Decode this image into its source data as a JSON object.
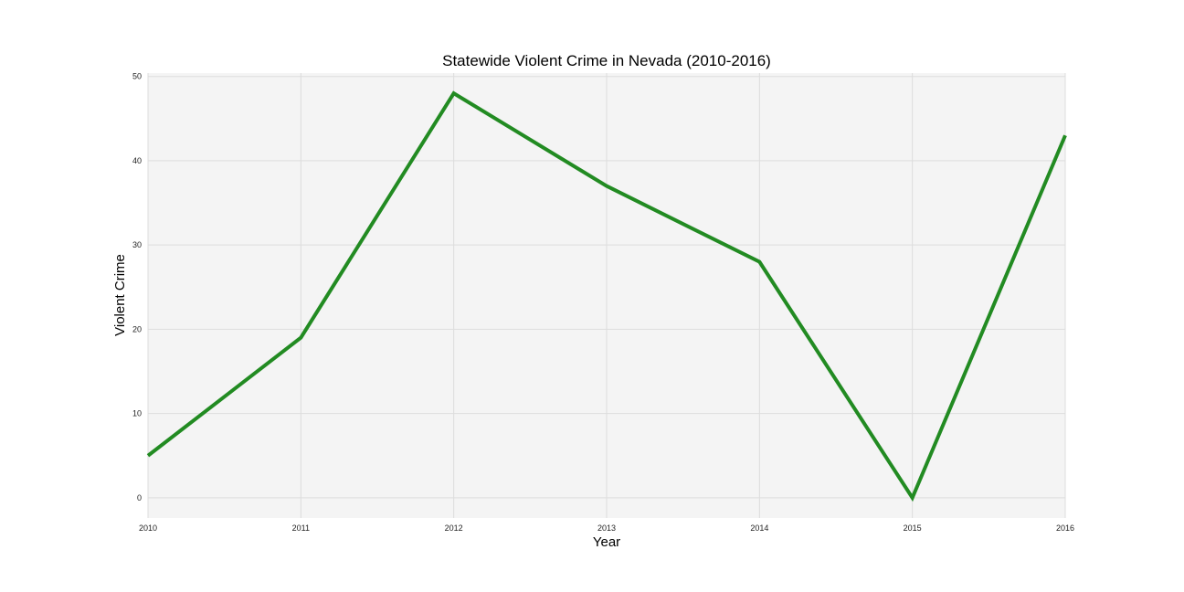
{
  "chart_data": {
    "type": "line",
    "title": "Statewide Violent Crime in Nevada (2010-2016)",
    "xlabel": "Year",
    "ylabel": "Violent Crime",
    "x": [
      2010,
      2011,
      2012,
      2013,
      2014,
      2015,
      2016
    ],
    "series": [
      {
        "values": [
          5,
          19,
          48,
          37,
          28,
          0,
          43
        ],
        "color": "#228B22"
      }
    ],
    "xticks": [
      "2010",
      "2011",
      "2012",
      "2013",
      "2014",
      "2015",
      "2016"
    ],
    "yticks": [
      "0",
      "10",
      "20",
      "30",
      "40",
      "50"
    ],
    "xlim": [
      2010,
      2016
    ],
    "ylim": [
      -2.4,
      50.4
    ],
    "grid": true,
    "colors": {
      "plot_background": "#f4f4f4",
      "grid": "#dddddd",
      "line": "#228B22"
    }
  }
}
